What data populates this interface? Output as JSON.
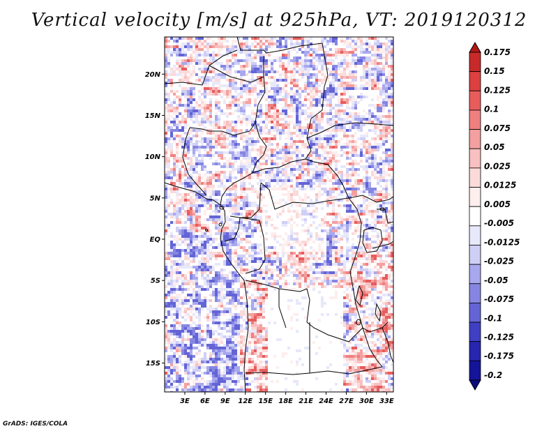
{
  "title": "Vertical velocity [m/s] at 925hPa, VT: 2019120312",
  "footer": "GrADS: IGES/COLA",
  "map": {
    "lat_range": [
      -18.5,
      24.5
    ],
    "lon_range": [
      0,
      34
    ],
    "lat_labels": [
      "20N",
      "15N",
      "10N",
      "5N",
      "EQ",
      "5S",
      "10S",
      "15S"
    ],
    "lat_values": [
      20,
      15,
      10,
      5,
      0,
      -5,
      -10,
      -15
    ],
    "lon_labels": [
      "3E",
      "6E",
      "9E",
      "12E",
      "15E",
      "18E",
      "21E",
      "24E",
      "27E",
      "30E",
      "33E"
    ],
    "lon_values": [
      3,
      6,
      9,
      12,
      15,
      18,
      21,
      24,
      27,
      30,
      33
    ]
  },
  "colorbar": {
    "labels": [
      "0.175",
      "0.15",
      "0.125",
      "0.1",
      "0.075",
      "0.05",
      "0.025",
      "0.0125",
      "0.005",
      "-0.005",
      "-0.0125",
      "-0.025",
      "-0.05",
      "-0.075",
      "-0.1",
      "-0.125",
      "-0.175",
      "-0.2"
    ],
    "colors": [
      "#b01818",
      "#c82a2a",
      "#dd4040",
      "#e85c5c",
      "#ef8080",
      "#f4a0a0",
      "#f8c0c0",
      "#fbdada",
      "#feeeee",
      "#ffffff",
      "#e8e8fb",
      "#cfcff6",
      "#a8a8ee",
      "#8686e2",
      "#6464d6",
      "#4040c4",
      "#2626b0",
      "#14149a",
      "#0c0c80"
    ]
  }
}
